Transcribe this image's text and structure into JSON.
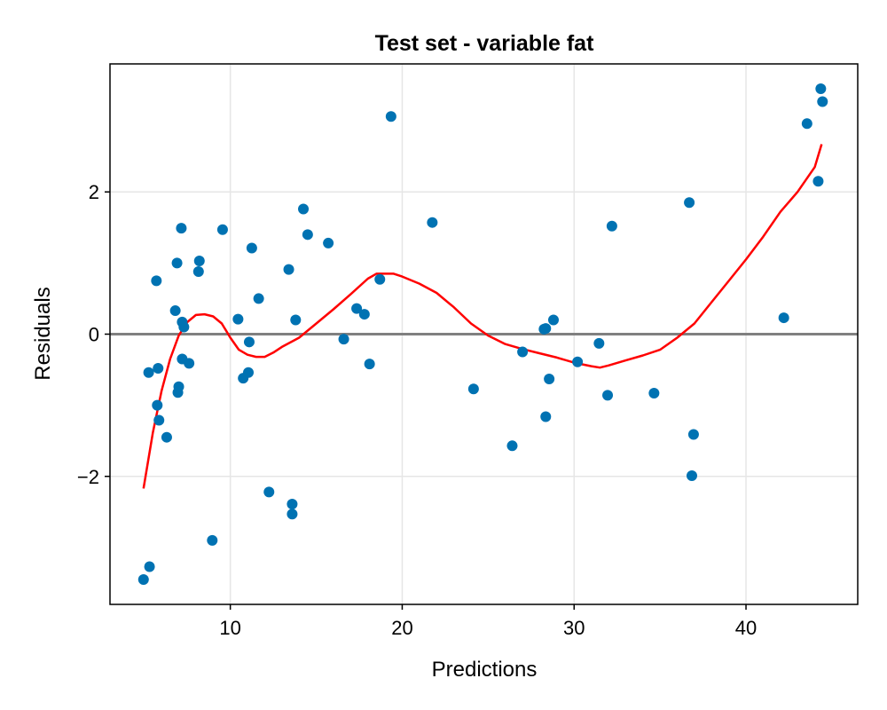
{
  "chart_data": {
    "type": "scatter",
    "title": "Test set - variable fat",
    "xlabel": "Predictions",
    "ylabel": "Residuals",
    "xlim": [
      3,
      46.5
    ],
    "ylim": [
      -3.8,
      3.8
    ],
    "xticks": [
      10,
      20,
      30,
      40
    ],
    "yticks": [
      -2,
      0,
      2
    ],
    "ytick_labels": [
      "−2",
      "0",
      "2"
    ],
    "grid": true,
    "reference_line": {
      "y": 0,
      "color": "#808080"
    },
    "points": {
      "color": "#0072b2",
      "x": [
        4.95,
        5.3,
        5.25,
        5.7,
        5.75,
        5.8,
        5.85,
        6.3,
        6.8,
        6.95,
        6.9,
        7.0,
        7.15,
        7.2,
        7.2,
        7.3,
        7.6,
        8.15,
        8.2,
        8.95,
        9.55,
        10.45,
        10.75,
        11.05,
        11.1,
        11.25,
        11.65,
        12.25,
        13.4,
        13.6,
        13.6,
        13.8,
        14.25,
        14.5,
        15.7,
        16.6,
        17.35,
        17.8,
        18.1,
        18.7,
        19.35,
        21.75,
        24.15,
        26.4,
        27.0,
        28.25,
        28.35,
        28.35,
        28.55,
        28.8,
        30.2,
        31.45,
        31.95,
        32.2,
        34.65,
        36.7,
        36.85,
        36.95,
        42.2,
        43.55,
        44.2,
        44.35,
        44.45
      ],
      "y": [
        -3.45,
        -3.27,
        -0.54,
        0.75,
        -1.0,
        -0.48,
        -1.21,
        -1.45,
        0.33,
        -0.82,
        1.0,
        -0.74,
        1.49,
        0.17,
        -0.35,
        0.1,
        -0.41,
        0.88,
        1.03,
        -2.9,
        1.47,
        0.21,
        -0.62,
        -0.54,
        -0.11,
        1.21,
        0.5,
        -2.22,
        0.91,
        -2.39,
        -2.53,
        0.2,
        1.76,
        1.4,
        1.28,
        -0.07,
        0.36,
        0.28,
        -0.42,
        0.77,
        3.06,
        1.57,
        -0.77,
        -1.57,
        -0.25,
        0.07,
        0.08,
        -1.16,
        -0.63,
        0.2,
        -0.39,
        -0.13,
        -0.86,
        1.52,
        -0.83,
        1.85,
        -1.99,
        -1.41,
        0.23,
        2.96,
        2.15,
        3.45,
        3.27
      ]
    },
    "trend": {
      "color": "#ff0000",
      "x": [
        4.95,
        5.5,
        6.0,
        6.5,
        7.0,
        7.5,
        8.0,
        8.5,
        9.0,
        9.5,
        10.0,
        10.5,
        11.0,
        11.5,
        12.0,
        12.5,
        13.0,
        14.0,
        15.0,
        16.0,
        17.0,
        18.0,
        18.5,
        19.0,
        19.5,
        20.0,
        21.0,
        22.0,
        23.0,
        24.0,
        25.0,
        26.0,
        27.0,
        28.0,
        29.0,
        30.0,
        31.0,
        31.5,
        32.0,
        33.0,
        34.0,
        35.0,
        36.0,
        37.0,
        38.0,
        39.0,
        40.0,
        41.0,
        42.0,
        43.0,
        44.0,
        44.4
      ],
      "y": [
        -2.17,
        -1.38,
        -0.8,
        -0.35,
        -0.02,
        0.17,
        0.27,
        0.28,
        0.25,
        0.15,
        -0.05,
        -0.22,
        -0.29,
        -0.32,
        -0.32,
        -0.26,
        -0.18,
        -0.05,
        0.15,
        0.35,
        0.56,
        0.78,
        0.85,
        0.85,
        0.85,
        0.81,
        0.71,
        0.58,
        0.38,
        0.15,
        -0.02,
        -0.14,
        -0.21,
        -0.27,
        -0.33,
        -0.4,
        -0.45,
        -0.47,
        -0.44,
        -0.37,
        -0.3,
        -0.22,
        -0.05,
        0.15,
        0.45,
        0.75,
        1.05,
        1.37,
        1.72,
        2.0,
        2.35,
        2.67
      ]
    }
  }
}
